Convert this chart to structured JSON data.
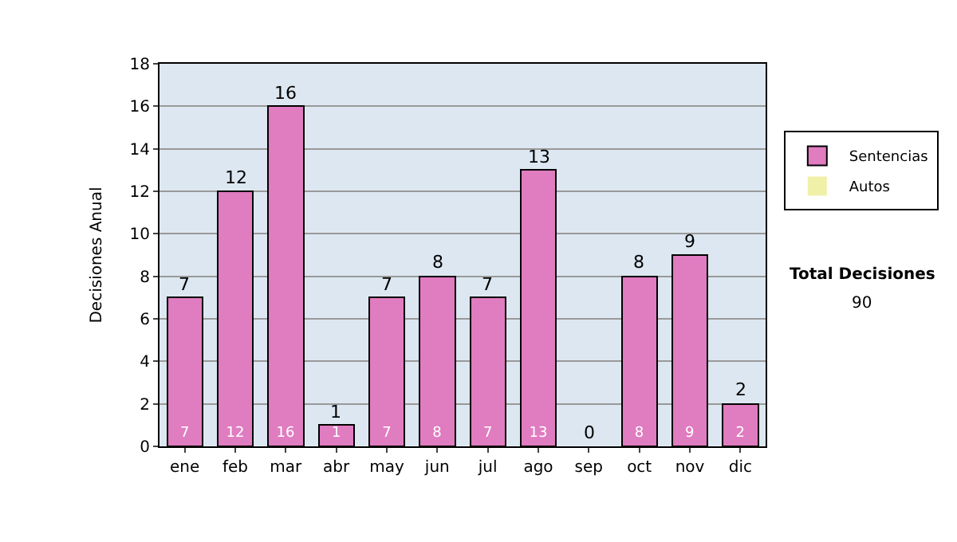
{
  "chart_data": {
    "type": "bar",
    "stacked": true,
    "ylabel": "Decisiones Anual",
    "categories": [
      "ene",
      "feb",
      "mar",
      "abr",
      "may",
      "jun",
      "jul",
      "ago",
      "sep",
      "oct",
      "nov",
      "dic"
    ],
    "series": [
      {
        "name": "Sentencias",
        "color": "#e07cc0",
        "values": [
          7,
          12,
          16,
          1,
          7,
          8,
          7,
          13,
          0,
          8,
          9,
          2
        ],
        "value_labels": [
          "7",
          "12",
          "16",
          "1",
          "7",
          "8",
          "7",
          "13",
          null,
          "8",
          "9",
          "2"
        ]
      },
      {
        "name": "Autos",
        "color": "#f0f0a8",
        "values": [
          0,
          0,
          0,
          0,
          0,
          0,
          0,
          0,
          0,
          0,
          0,
          0
        ]
      }
    ],
    "totals": [
      "7",
      "12",
      "16",
      "1",
      "7",
      "8",
      "7",
      "13",
      "0",
      "8",
      "9",
      "2"
    ],
    "ylim": [
      0,
      18
    ],
    "yticks": [
      0,
      2,
      4,
      6,
      8,
      10,
      12,
      14,
      16,
      18
    ],
    "grid": "y",
    "legend": "right",
    "annotations": [
      "Total Decisiones",
      "90"
    ]
  }
}
